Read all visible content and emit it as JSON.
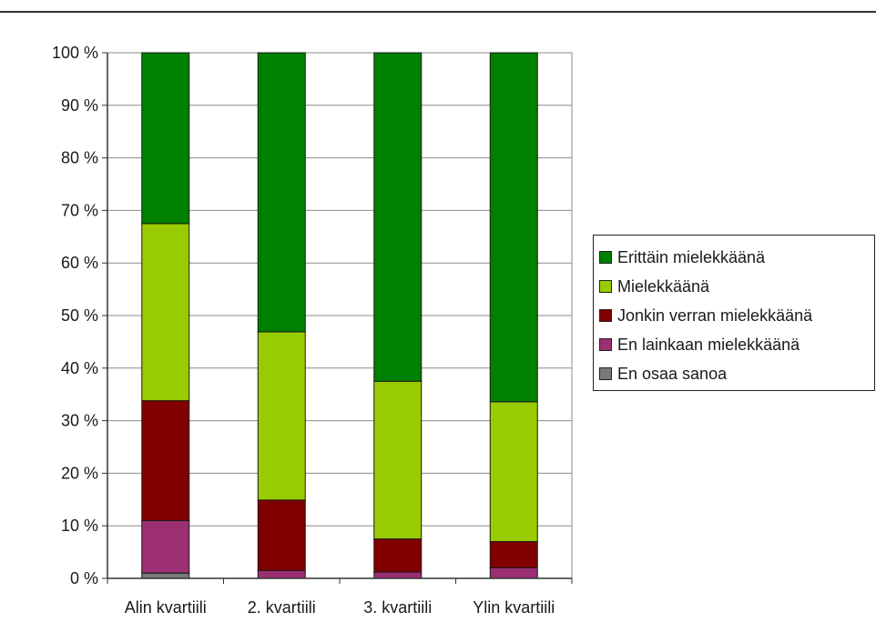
{
  "chart_data": {
    "type": "bar",
    "stacked": true,
    "categories": [
      "Alin kvartiili",
      "2. kvartiili",
      "3. kvartiili",
      "Ylin kvartiili"
    ],
    "y_ticks": [
      "0 %",
      "10 %",
      "20 %",
      "30 %",
      "40 %",
      "50 %",
      "60 %",
      "70 %",
      "80 %",
      "90 %",
      "100 %"
    ],
    "ylim": [
      0,
      100
    ],
    "grid": true,
    "legend_position": "right",
    "series": [
      {
        "name": "En osaa sanoa",
        "color": "#7a7a7a",
        "values": [
          1.0,
          0.0,
          0.0,
          0.0
        ]
      },
      {
        "name": "En lainkaan mielekkäänä",
        "color": "#9c2f73",
        "values": [
          10.0,
          1.5,
          1.2,
          2.0
        ]
      },
      {
        "name": "Jonkin verran mielekkäänä",
        "color": "#800000",
        "values": [
          22.8,
          13.4,
          6.3,
          5.0
        ]
      },
      {
        "name": "Mielekkäänä",
        "color": "#99cc00",
        "values": [
          33.7,
          32.0,
          30.0,
          26.6
        ]
      },
      {
        "name": "Erittäin mielekkäänä",
        "color": "#008000",
        "values": [
          32.5,
          53.1,
          62.5,
          66.4
        ]
      }
    ]
  }
}
